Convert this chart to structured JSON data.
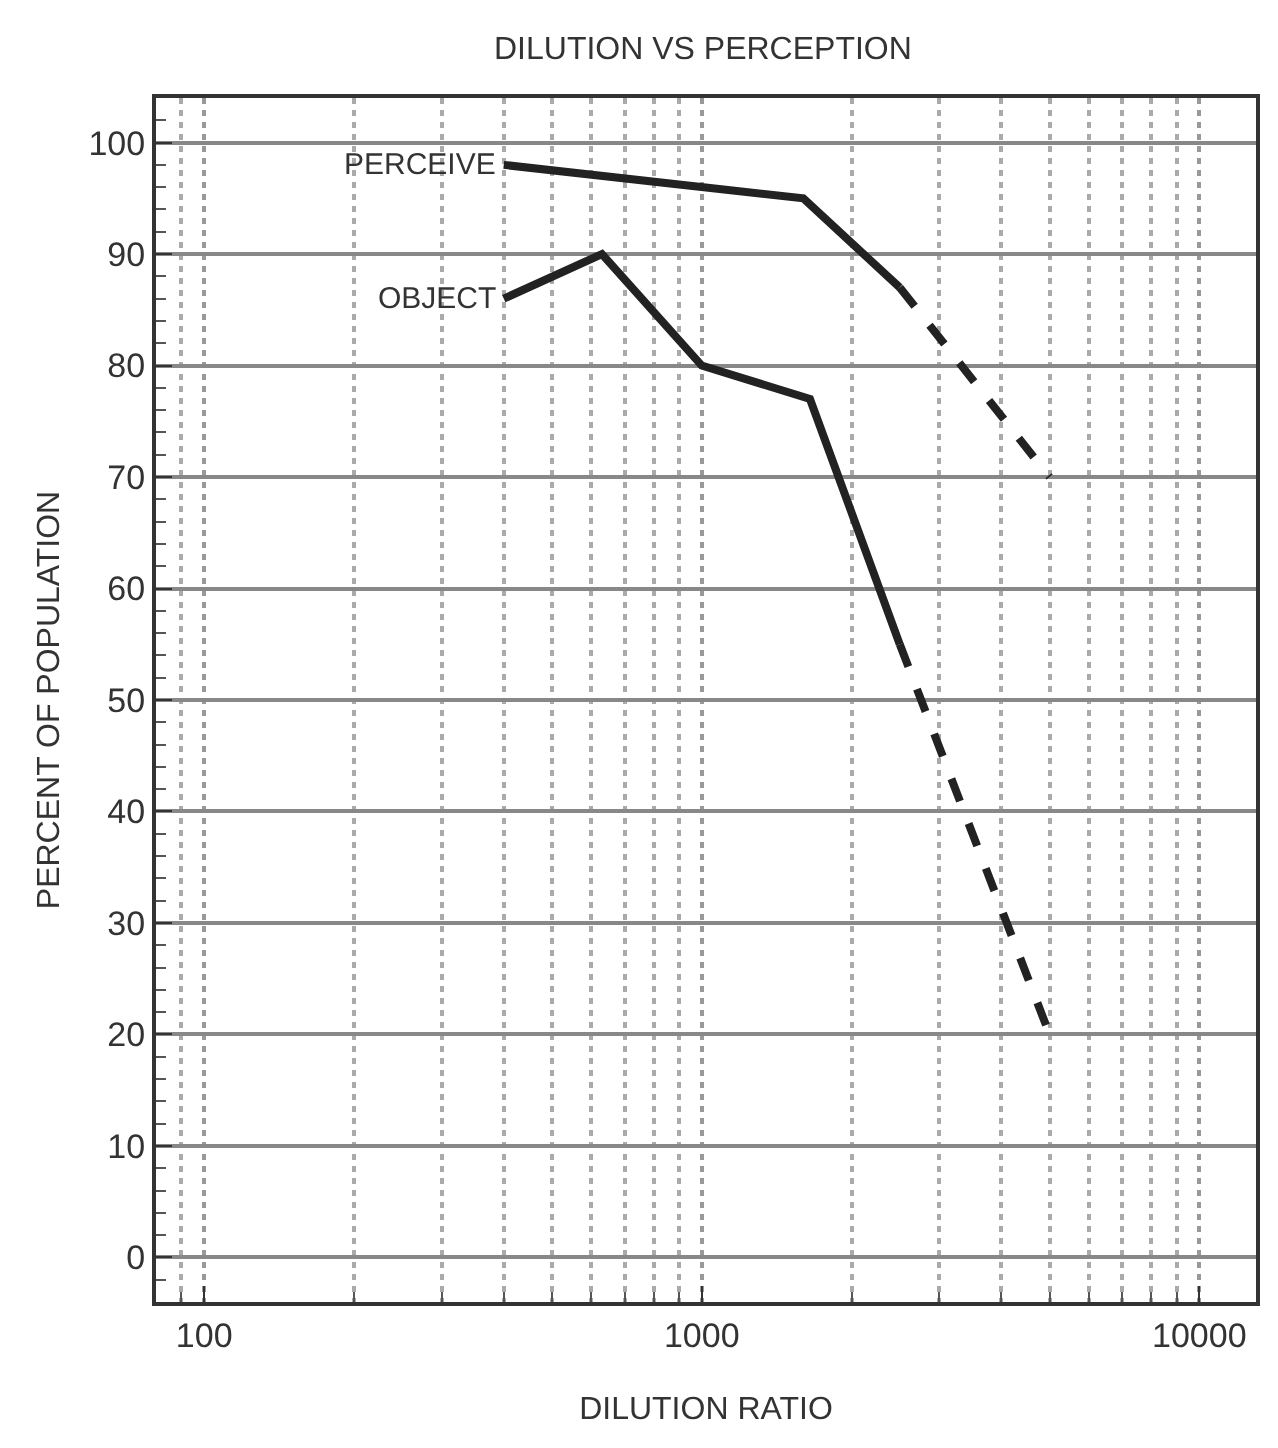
{
  "chart_data": {
    "type": "line",
    "title": "DILUTION VS PERCEPTION",
    "xlabel": "DILUTION RATIO",
    "ylabel": "PERCENT OF POPULATION",
    "log": "x",
    "grid": true,
    "legend": false,
    "marker": "none",
    "xlim": [
      80,
      13000
    ],
    "xticks": [
      100,
      1000,
      10000
    ],
    "ylim": [
      -4,
      104
    ],
    "yticks": [
      0,
      10,
      20,
      30,
      40,
      50,
      60,
      70,
      80,
      90,
      100
    ],
    "series": [
      {
        "name": "PERCEIVE",
        "color": "#222222",
        "line_style": "solid",
        "x": [
          400,
          1600,
          2500
        ],
        "values": [
          98,
          95,
          87
        ]
      },
      {
        "color": "#222222",
        "line_style": "dashed",
        "x": [
          2500,
          5000
        ],
        "values": [
          87,
          70
        ]
      },
      {
        "name": "OBJECT",
        "color": "#222222",
        "line_style": "solid",
        "x": [
          400,
          630,
          1000,
          1650,
          2500
        ],
        "values": [
          86,
          90,
          80,
          77,
          55
        ]
      },
      {
        "color": "#222222",
        "line_style": "dashed",
        "x": [
          2500,
          5000
        ],
        "values": [
          55,
          20
        ]
      }
    ]
  }
}
